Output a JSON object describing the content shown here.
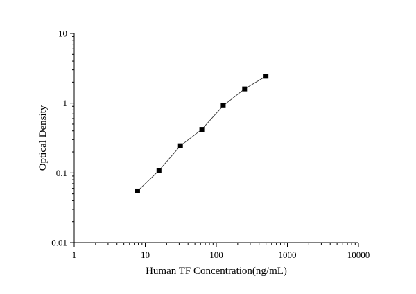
{
  "chart_data": {
    "type": "scatter",
    "title": "",
    "xlabel": "Human TF Concentration(ng/mL)",
    "ylabel": "Optical Density",
    "xscale": "log",
    "yscale": "log",
    "xlim": [
      1,
      10000
    ],
    "ylim": [
      0.01,
      10
    ],
    "x_ticks": [
      "1",
      "10",
      "100",
      "1000",
      "10000"
    ],
    "y_ticks": [
      "0.01",
      "0.1",
      "1",
      "10"
    ],
    "grid": false,
    "legend": "none",
    "series": [
      {
        "x": [
          7.8,
          15.6,
          31.25,
          62.5,
          125,
          250,
          500
        ],
        "y": [
          0.055,
          0.108,
          0.245,
          0.42,
          0.92,
          1.6,
          2.43
        ],
        "marker": "square",
        "line": "connected",
        "color": "#000000"
      }
    ]
  }
}
